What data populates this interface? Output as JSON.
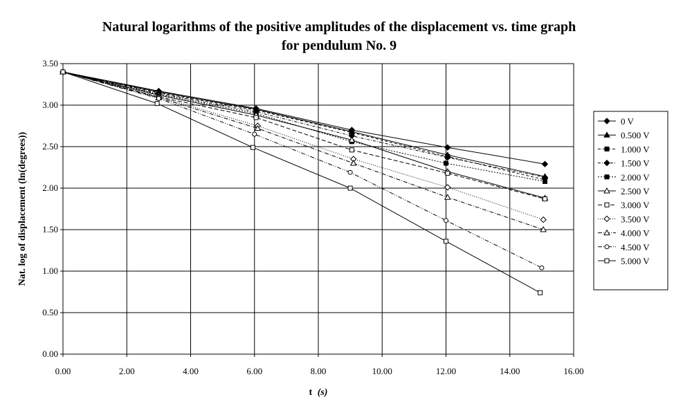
{
  "chart_data": {
    "type": "line",
    "title": "Natural logarithms of the positive amplitudes of the displacement vs. time graph",
    "subtitle": "for pendulum No. 9",
    "xlabel_main": "t",
    "xlabel_unit": "(s)",
    "ylabel": "Nat. log of displacement (ln(degrees))",
    "xlim": [
      0,
      16
    ],
    "ylim": [
      0,
      3.5
    ],
    "x_ticks": [
      "0.00",
      "2.00",
      "4.00",
      "6.00",
      "8.00",
      "10.00",
      "12.00",
      "14.00",
      "16.00"
    ],
    "y_ticks": [
      "0.00",
      "0.50",
      "1.00",
      "1.50",
      "2.00",
      "2.50",
      "3.00",
      "3.50"
    ],
    "grid": true,
    "legend_position": "right",
    "series": [
      {
        "name": "0 V",
        "marker": "diamond-filled",
        "dash": "",
        "x": [
          0,
          3.0,
          6.05,
          9.05,
          12.05,
          15.1
        ],
        "y": [
          3.4,
          3.17,
          2.96,
          2.7,
          2.49,
          2.29
        ]
      },
      {
        "name": "0.500 V",
        "marker": "triangle-filled",
        "dash": "",
        "x": [
          0,
          3.0,
          6.05,
          9.05,
          12.05,
          15.1
        ],
        "y": [
          3.4,
          3.16,
          2.95,
          2.68,
          2.4,
          2.14
        ]
      },
      {
        "name": "1.000 V",
        "marker": "square-filled",
        "dash": "4,3",
        "x": [
          0,
          3.0,
          6.05,
          9.05,
          12.05,
          15.1
        ],
        "y": [
          3.4,
          3.15,
          2.94,
          2.67,
          2.38,
          2.1
        ]
      },
      {
        "name": "1.500 V",
        "marker": "diamond-filled",
        "dash": "4,2,1,2",
        "x": [
          0,
          3.0,
          6.05,
          9.05,
          12.05,
          15.1
        ],
        "y": [
          3.4,
          3.14,
          2.92,
          2.63,
          2.37,
          2.13
        ]
      },
      {
        "name": "2.000 V",
        "marker": "square-filled",
        "dash": "2,2",
        "x": [
          0,
          3.0,
          6.05,
          9.05,
          12.0,
          15.1
        ],
        "y": [
          3.4,
          3.13,
          2.9,
          2.56,
          2.3,
          2.08
        ]
      },
      {
        "name": "2.500 V",
        "marker": "triangle-open",
        "dash": "",
        "x": [
          0,
          3.0,
          6.05,
          9.05,
          12.05,
          15.1
        ],
        "y": [
          3.4,
          3.12,
          2.88,
          2.58,
          2.2,
          1.88
        ]
      },
      {
        "name": "3.000 V",
        "marker": "square-open",
        "dash": "6,3",
        "x": [
          0,
          3.0,
          6.05,
          9.05,
          12.05,
          15.1
        ],
        "y": [
          3.4,
          3.1,
          2.85,
          2.46,
          2.18,
          1.87
        ]
      },
      {
        "name": "3.500 V",
        "marker": "diamond-open",
        "dash": "1,2",
        "x": [
          0,
          3.0,
          6.1,
          9.1,
          12.05,
          15.05
        ],
        "y": [
          3.4,
          3.1,
          2.75,
          2.35,
          2.01,
          1.62
        ]
      },
      {
        "name": "4.000 V",
        "marker": "triangle-open",
        "dash": "6,2,1,2",
        "x": [
          0,
          3.0,
          6.1,
          9.1,
          12.05,
          15.05
        ],
        "y": [
          3.4,
          3.09,
          2.72,
          2.3,
          1.89,
          1.5
        ]
      },
      {
        "name": "4.500 V",
        "marker": "circle-open",
        "dash": "6,2,1,2,1,2",
        "x": [
          0,
          3.0,
          6.0,
          9.0,
          12.0,
          15.0
        ],
        "y": [
          3.4,
          3.08,
          2.65,
          2.19,
          1.61,
          1.04
        ]
      },
      {
        "name": "5.000 V",
        "marker": "square-open",
        "dash": "",
        "x": [
          0,
          2.95,
          5.95,
          9.0,
          12.0,
          14.95
        ],
        "y": [
          3.4,
          3.02,
          2.49,
          2.0,
          1.36,
          0.74
        ]
      }
    ]
  }
}
